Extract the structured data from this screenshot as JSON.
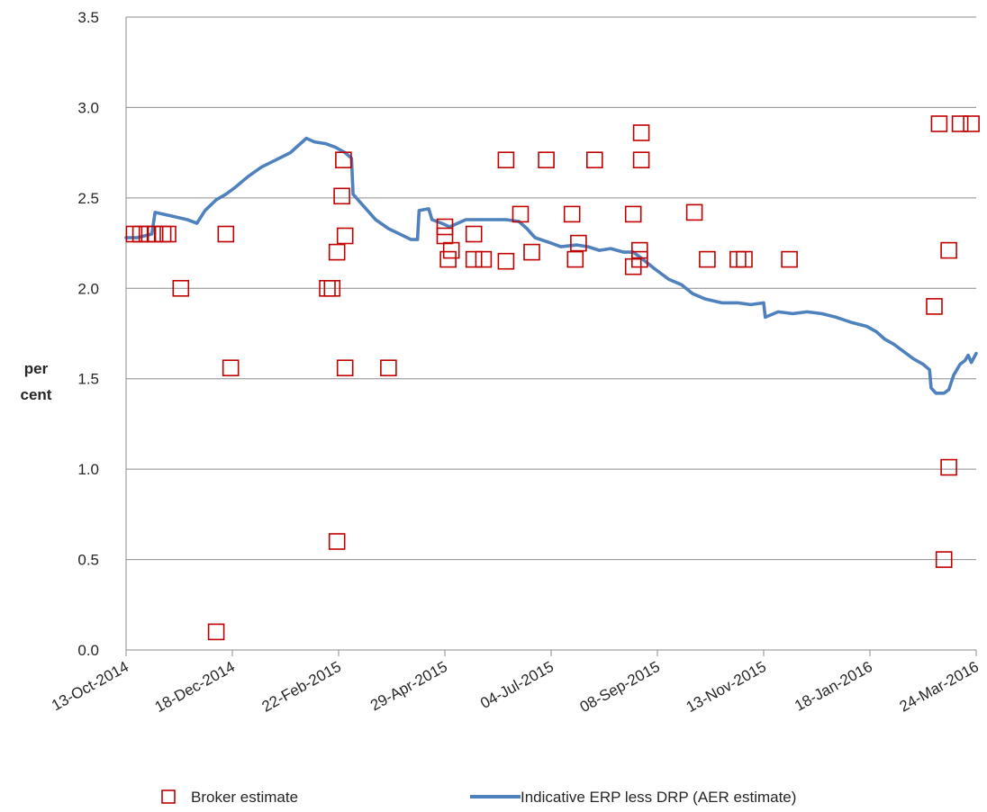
{
  "chart_data": {
    "type": "scatter",
    "ylabel_lines": [
      "per",
      "cent"
    ],
    "ylim": [
      0,
      3.5
    ],
    "yticks": [
      0.0,
      0.5,
      1.0,
      1.5,
      2.0,
      2.5,
      3.0,
      3.5
    ],
    "ytick_labels": [
      "0.0",
      "0.5",
      "1.0",
      "1.5",
      "2.0",
      "2.5",
      "3.0",
      "3.5"
    ],
    "xlim": [
      "2014-10-13",
      "2016-03-24"
    ],
    "xticks": [
      "2014-10-13",
      "2014-12-18",
      "2015-02-22",
      "2015-04-29",
      "2015-07-04",
      "2015-09-08",
      "2015-11-13",
      "2016-01-18",
      "2016-03-24"
    ],
    "xtick_labels": [
      "13-Oct-2014",
      "18-Dec-2014",
      "22-Feb-2015",
      "29-Apr-2015",
      "04-Jul-2015",
      "08-Sep-2015",
      "13-Nov-2015",
      "18-Jan-2016",
      "24-Mar-2016"
    ],
    "grid": "horizontal",
    "legend_position": "bottom",
    "colors": {
      "broker": "#c00000",
      "line": "#4f81bd",
      "grid": "#8c8c8c"
    },
    "series": [
      {
        "name": "Broker estimate",
        "kind": "scatter",
        "marker": "open-square",
        "points": [
          [
            "2014-10-18",
            2.3
          ],
          [
            "2014-10-22",
            2.3
          ],
          [
            "2014-10-26",
            2.3
          ],
          [
            "2014-10-31",
            2.3
          ],
          [
            "2014-11-05",
            2.3
          ],
          [
            "2014-11-08",
            2.3
          ],
          [
            "2014-11-16",
            2.0
          ],
          [
            "2014-12-08",
            0.1
          ],
          [
            "2014-12-14",
            2.3
          ],
          [
            "2014-12-17",
            1.56
          ],
          [
            "2015-02-15",
            2.0
          ],
          [
            "2015-02-18",
            2.0
          ],
          [
            "2015-02-21",
            2.2
          ],
          [
            "2015-02-21",
            0.6
          ],
          [
            "2015-02-24",
            2.51
          ],
          [
            "2015-02-25",
            2.71
          ],
          [
            "2015-02-26",
            2.29
          ],
          [
            "2015-02-26",
            1.56
          ],
          [
            "2015-03-25",
            1.56
          ],
          [
            "2015-04-29",
            2.34
          ],
          [
            "2015-04-29",
            2.29
          ],
          [
            "2015-05-01",
            2.16
          ],
          [
            "2015-05-03",
            2.21
          ],
          [
            "2015-05-17",
            2.3
          ],
          [
            "2015-05-17",
            2.16
          ],
          [
            "2015-05-23",
            2.16
          ],
          [
            "2015-06-06",
            2.71
          ],
          [
            "2015-06-06",
            2.15
          ],
          [
            "2015-06-15",
            2.41
          ],
          [
            "2015-06-22",
            2.2
          ],
          [
            "2015-07-01",
            2.71
          ],
          [
            "2015-07-17",
            2.41
          ],
          [
            "2015-07-19",
            2.16
          ],
          [
            "2015-07-21",
            2.25
          ],
          [
            "2015-07-31",
            2.71
          ],
          [
            "2015-08-24",
            2.41
          ],
          [
            "2015-08-24",
            2.12
          ],
          [
            "2015-08-28",
            2.16
          ],
          [
            "2015-08-28",
            2.21
          ],
          [
            "2015-08-29",
            2.71
          ],
          [
            "2015-08-29",
            2.86
          ],
          [
            "2015-10-01",
            2.42
          ],
          [
            "2015-10-09",
            2.16
          ],
          [
            "2015-10-28",
            2.16
          ],
          [
            "2015-11-01",
            2.16
          ],
          [
            "2015-11-29",
            2.16
          ],
          [
            "2016-02-27",
            1.9
          ],
          [
            "2016-03-01",
            2.91
          ],
          [
            "2016-03-04",
            0.5
          ],
          [
            "2016-03-07",
            2.21
          ],
          [
            "2016-03-07",
            1.01
          ],
          [
            "2016-03-14",
            2.91
          ],
          [
            "2016-03-21",
            2.91
          ]
        ]
      },
      {
        "name": "Indicative ERP less DRP (AER estimate)",
        "kind": "line",
        "points": [
          [
            "2014-10-13",
            2.28
          ],
          [
            "2014-10-20",
            2.28
          ],
          [
            "2014-10-29",
            2.3
          ],
          [
            "2014-10-31",
            2.42
          ],
          [
            "2014-11-10",
            2.4
          ],
          [
            "2014-11-20",
            2.38
          ],
          [
            "2014-11-26",
            2.36
          ],
          [
            "2014-12-01",
            2.43
          ],
          [
            "2014-12-08",
            2.49
          ],
          [
            "2014-12-14",
            2.52
          ],
          [
            "2014-12-20",
            2.56
          ],
          [
            "2014-12-28",
            2.62
          ],
          [
            "2015-01-05",
            2.67
          ],
          [
            "2015-01-14",
            2.71
          ],
          [
            "2015-01-23",
            2.75
          ],
          [
            "2015-01-28",
            2.79
          ],
          [
            "2015-02-02",
            2.83
          ],
          [
            "2015-02-07",
            2.81
          ],
          [
            "2015-02-14",
            2.8
          ],
          [
            "2015-02-20",
            2.78
          ],
          [
            "2015-02-26",
            2.75
          ],
          [
            "2015-03-02",
            2.72
          ],
          [
            "2015-03-03",
            2.52
          ],
          [
            "2015-03-10",
            2.45
          ],
          [
            "2015-03-17",
            2.38
          ],
          [
            "2015-03-25",
            2.33
          ],
          [
            "2015-04-01",
            2.3
          ],
          [
            "2015-04-08",
            2.27
          ],
          [
            "2015-04-12",
            2.27
          ],
          [
            "2015-04-13",
            2.43
          ],
          [
            "2015-04-19",
            2.44
          ],
          [
            "2015-04-21",
            2.38
          ],
          [
            "2015-04-27",
            2.36
          ],
          [
            "2015-05-02",
            2.34
          ],
          [
            "2015-05-07",
            2.36
          ],
          [
            "2015-05-12",
            2.38
          ],
          [
            "2015-05-25",
            2.38
          ],
          [
            "2015-06-06",
            2.38
          ],
          [
            "2015-06-14",
            2.37
          ],
          [
            "2015-06-19",
            2.33
          ],
          [
            "2015-06-24",
            2.28
          ],
          [
            "2015-07-04",
            2.25
          ],
          [
            "2015-07-10",
            2.23
          ],
          [
            "2015-07-20",
            2.24
          ],
          [
            "2015-07-27",
            2.23
          ],
          [
            "2015-08-03",
            2.21
          ],
          [
            "2015-08-10",
            2.22
          ],
          [
            "2015-08-18",
            2.2
          ],
          [
            "2015-08-24",
            2.2
          ],
          [
            "2015-08-30",
            2.16
          ],
          [
            "2015-09-06",
            2.11
          ],
          [
            "2015-09-15",
            2.05
          ],
          [
            "2015-09-23",
            2.02
          ],
          [
            "2015-09-30",
            1.97
          ],
          [
            "2015-10-08",
            1.94
          ],
          [
            "2015-10-18",
            1.92
          ],
          [
            "2015-10-28",
            1.92
          ],
          [
            "2015-11-05",
            1.91
          ],
          [
            "2015-11-13",
            1.92
          ],
          [
            "2015-11-14",
            1.84
          ],
          [
            "2015-11-22",
            1.87
          ],
          [
            "2015-12-01",
            1.86
          ],
          [
            "2015-12-10",
            1.87
          ],
          [
            "2015-12-19",
            1.86
          ],
          [
            "2015-12-28",
            1.84
          ],
          [
            "2016-01-07",
            1.81
          ],
          [
            "2016-01-16",
            1.79
          ],
          [
            "2016-01-22",
            1.76
          ],
          [
            "2016-01-27",
            1.72
          ],
          [
            "2016-02-02",
            1.69
          ],
          [
            "2016-02-08",
            1.65
          ],
          [
            "2016-02-14",
            1.61
          ],
          [
            "2016-02-20",
            1.58
          ],
          [
            "2016-02-24",
            1.55
          ],
          [
            "2016-02-25",
            1.45
          ],
          [
            "2016-02-28",
            1.42
          ],
          [
            "2016-03-04",
            1.42
          ],
          [
            "2016-03-07",
            1.44
          ],
          [
            "2016-03-10",
            1.52
          ],
          [
            "2016-03-14",
            1.58
          ],
          [
            "2016-03-17",
            1.6
          ],
          [
            "2016-03-19",
            1.63
          ],
          [
            "2016-03-21",
            1.59
          ],
          [
            "2016-03-24",
            1.64
          ]
        ]
      }
    ]
  }
}
